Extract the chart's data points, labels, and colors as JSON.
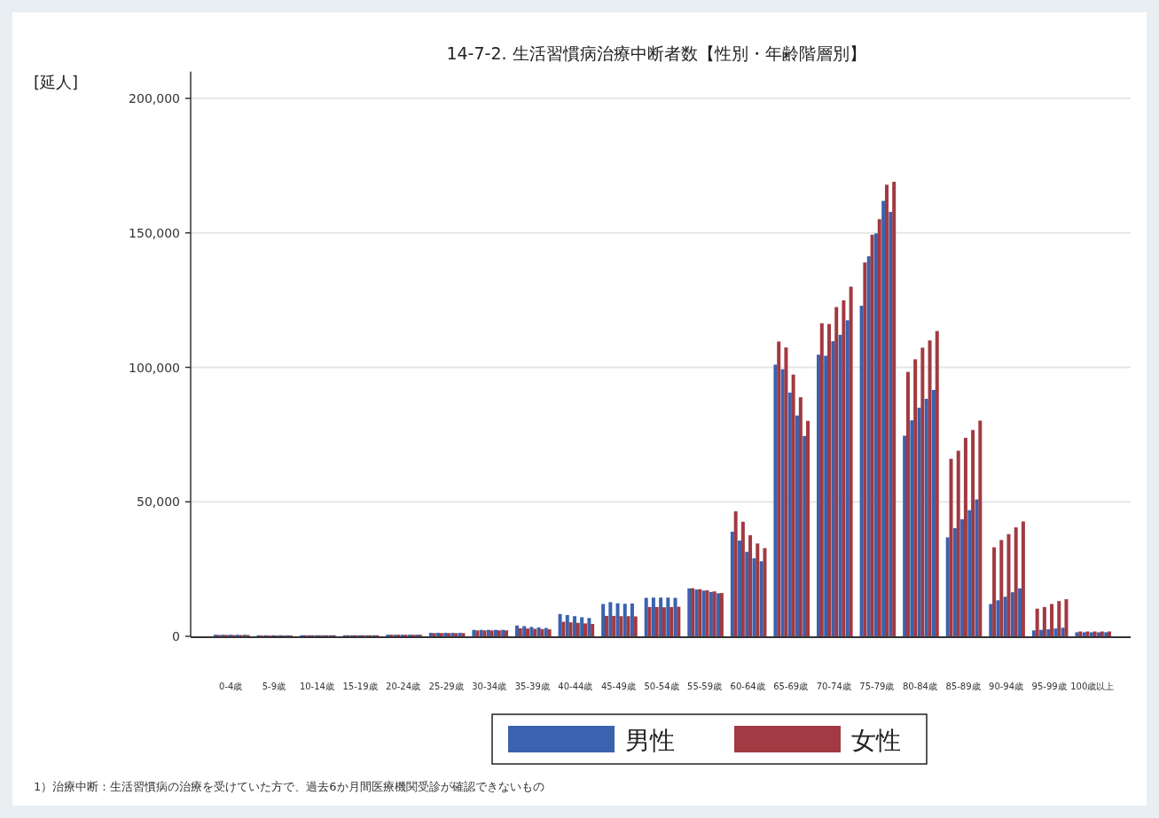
{
  "chart_data": {
    "type": "bar",
    "title": "14-7-2. 生活習慣病治療中断者数【性別・年齢階層別】",
    "ylabel": "[延人]",
    "annotations": [
      "1）治療中断：生活習慣病の治療を受けていた方で、過去6か月間医療機関受診が確認できないもの"
    ],
    "categories": [
      "0-4歳",
      "5-9歳",
      "10-14歳",
      "15-19歳",
      "20-24歳",
      "25-29歳",
      "30-34歳",
      "35-39歳",
      "40-44歳",
      "45-49歳",
      "50-54歳",
      "55-59歳",
      "60-64歳",
      "65-69歳",
      "70-74歳",
      "75-79歳",
      "80-84歳",
      "85-89歳",
      "90-94歳",
      "95-99歳",
      "100歳以上"
    ],
    "ylim": [
      0,
      210000
    ],
    "yticks": [
      0,
      {
        "value": 50000,
        "label": "50,000"
      },
      {
        "value": 100000,
        "label": "100,000"
      },
      {
        "value": 150000,
        "label": "150,000"
      },
      {
        "value": 200000,
        "label": "200,000"
      }
    ],
    "grid": "y",
    "legend": "bottom",
    "series": [
      {
        "name": "男性",
        "color": "#3a62ae",
        "values": [
          600,
          400,
          400,
          400,
          600,
          1300,
          2400,
          4000,
          8300,
          12000,
          14300,
          17800,
          38900,
          101000,
          104700,
          122900,
          74600,
          36800,
          12000,
          2200,
          1500
        ]
      },
      {
        "name": "女性",
        "color": "#a13a42",
        "values": [
          500,
          300,
          400,
          400,
          600,
          1200,
          2200,
          3000,
          5400,
          7600,
          10900,
          17900,
          46500,
          109600,
          116400,
          139000,
          98300,
          66000,
          33100,
          10300,
          1800
        ]
      },
      {
        "color": "#3a62ae",
        "values": [
          600,
          400,
          400,
          400,
          600,
          1300,
          2400,
          3800,
          7900,
          12700,
          14400,
          17400,
          35600,
          99300,
          104300,
          141300,
          80300,
          40200,
          13400,
          2400,
          1500
        ]
      },
      {
        "color": "#a13a42",
        "values": [
          500,
          300,
          400,
          400,
          600,
          1200,
          2200,
          2900,
          5200,
          7600,
          10900,
          17500,
          42600,
          107400,
          116100,
          149300,
          103000,
          69000,
          35800,
          10900,
          1800
        ]
      },
      {
        "color": "#3a62ae",
        "values": [
          600,
          400,
          400,
          400,
          600,
          1300,
          2400,
          3500,
          7500,
          12300,
          14400,
          17000,
          31400,
          90600,
          109700,
          149800,
          85000,
          43500,
          14700,
          2600,
          1500
        ]
      },
      {
        "color": "#a13a42",
        "values": [
          500,
          300,
          400,
          400,
          600,
          1200,
          2200,
          2800,
          5000,
          7500,
          10800,
          17100,
          37600,
          97300,
          122400,
          155100,
          107300,
          73800,
          38000,
          12000,
          1800
        ]
      },
      {
        "color": "#3a62ae",
        "values": [
          600,
          400,
          400,
          400,
          600,
          1300,
          2400,
          3300,
          7100,
          12100,
          14400,
          16500,
          29000,
          82100,
          112100,
          161900,
          88300,
          46900,
          16400,
          2900,
          1500
        ]
      },
      {
        "color": "#a13a42",
        "values": [
          500,
          300,
          400,
          400,
          600,
          1200,
          2200,
          2700,
          4800,
          7500,
          10900,
          16700,
          34500,
          88900,
          124900,
          167900,
          110000,
          76700,
          40500,
          13100,
          1800
        ]
      },
      {
        "color": "#3a62ae",
        "values": [
          600,
          400,
          400,
          400,
          600,
          1300,
          2400,
          3100,
          6800,
          12200,
          14300,
          16000,
          27900,
          74500,
          117500,
          157800,
          91600,
          50900,
          17800,
          3200,
          1500
        ]
      },
      {
        "color": "#a13a42",
        "values": [
          500,
          300,
          400,
          400,
          600,
          1200,
          2200,
          2600,
          4600,
          7400,
          11000,
          16100,
          32800,
          80100,
          130000,
          169000,
          113500,
          80200,
          42700,
          13800,
          1800
        ]
      }
    ]
  }
}
